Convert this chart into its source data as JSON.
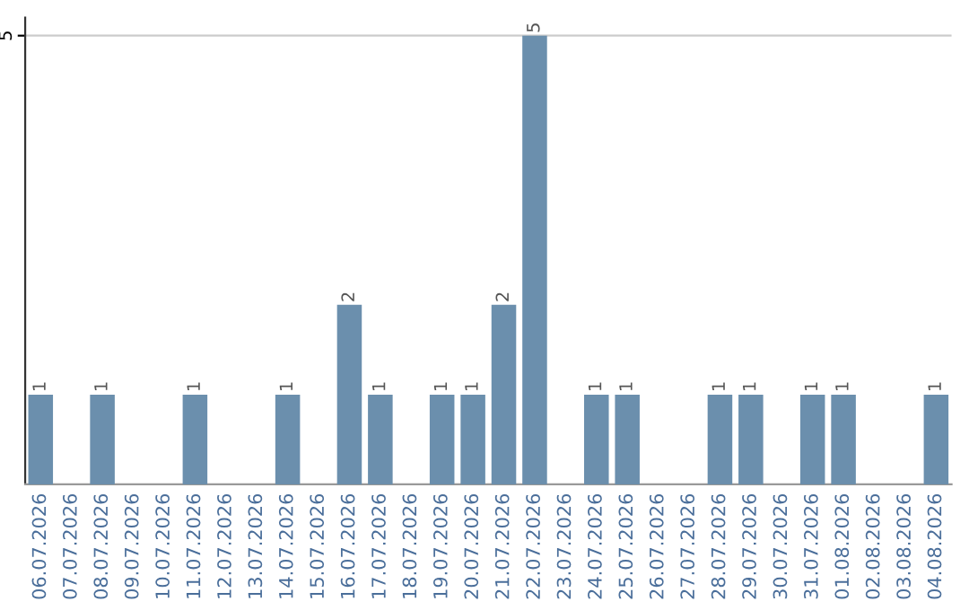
{
  "chart_data": {
    "type": "bar",
    "categories": [
      "06.07.2026",
      "07.07.2026",
      "08.07.2026",
      "09.07.2026",
      "10.07.2026",
      "11.07.2026",
      "12.07.2026",
      "13.07.2026",
      "14.07.2026",
      "15.07.2026",
      "16.07.2026",
      "17.07.2026",
      "18.07.2026",
      "19.07.2026",
      "20.07.2026",
      "21.07.2026",
      "22.07.2026",
      "23.07.2026",
      "24.07.2026",
      "25.07.2026",
      "26.07.2026",
      "27.07.2026",
      "28.07.2026",
      "29.07.2026",
      "30.07.2026",
      "31.07.2026",
      "01.08.2026",
      "02.08.2026",
      "03.08.2026",
      "04.08.2026"
    ],
    "values": [
      1,
      0,
      1,
      0,
      0,
      1,
      0,
      0,
      1,
      0,
      2,
      1,
      0,
      1,
      1,
      2,
      5,
      0,
      1,
      1,
      0,
      0,
      1,
      1,
      0,
      1,
      1,
      0,
      0,
      1
    ],
    "value_labels": [
      "1",
      null,
      "1",
      null,
      null,
      "1",
      null,
      null,
      "1",
      null,
      "2",
      "1",
      null,
      "1",
      "1",
      "2",
      "5",
      null,
      "1",
      "1",
      null,
      null,
      "1",
      "1",
      null,
      "1",
      "1",
      null,
      null,
      "1"
    ],
    "color": "#6b8fad",
    "ylim": [
      0,
      5.2
    ],
    "yticks": [
      5
    ],
    "grid": "y"
  }
}
